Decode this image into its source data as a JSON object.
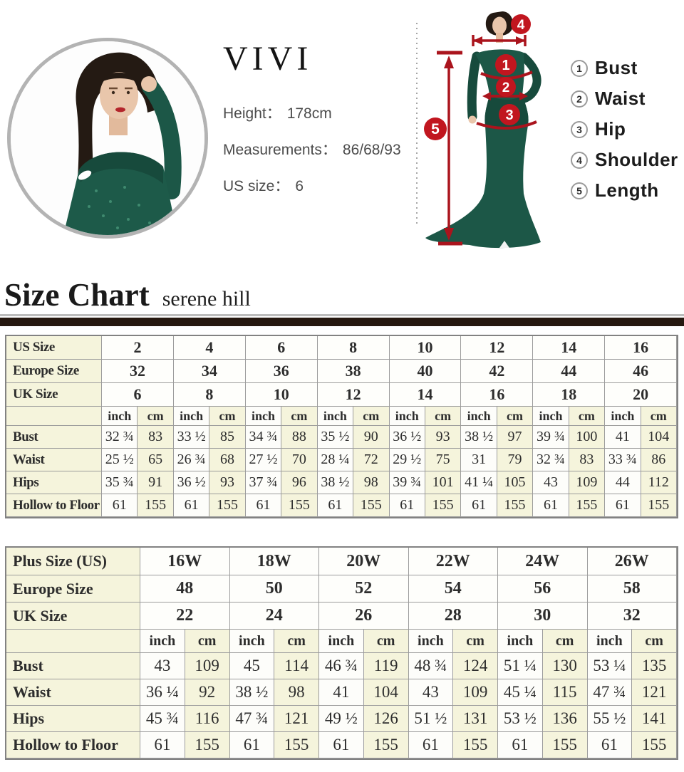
{
  "model_card": {
    "brand": "VIVI",
    "specs": [
      {
        "label": "Height：",
        "value": "178cm"
      },
      {
        "label": "Measurements：",
        "value": "86/68/93"
      },
      {
        "label": "US size：",
        "value": "6"
      }
    ]
  },
  "diagram": {
    "markers": [
      "1",
      "2",
      "3",
      "4",
      "5"
    ],
    "legend": [
      {
        "num": "1",
        "label": "Bust"
      },
      {
        "num": "2",
        "label": "Waist"
      },
      {
        "num": "3",
        "label": "Hip"
      },
      {
        "num": "4",
        "label": "Shoulder"
      },
      {
        "num": "5",
        "label": "Length"
      }
    ],
    "accent_red": "#c1161f",
    "dress_green": "#1c5747"
  },
  "size_chart": {
    "title": "Size Chart",
    "subtitle": "serene hill"
  },
  "tables": {
    "standard": {
      "units": [
        "inch",
        "cm"
      ],
      "header_rows": [
        {
          "label": "US Size",
          "values": [
            "2",
            "4",
            "6",
            "8",
            "10",
            "12",
            "14",
            "16"
          ]
        },
        {
          "label": "Europe Size",
          "values": [
            "32",
            "34",
            "36",
            "38",
            "40",
            "42",
            "44",
            "46"
          ]
        },
        {
          "label": "UK Size",
          "values": [
            "6",
            "8",
            "10",
            "12",
            "14",
            "16",
            "18",
            "20"
          ]
        }
      ],
      "body_rows": [
        {
          "label": "Bust",
          "values": [
            "32 ¾",
            "83",
            "33 ½",
            "85",
            "34 ¾",
            "88",
            "35 ½",
            "90",
            "36 ½",
            "93",
            "38 ½",
            "97",
            "39 ¾",
            "100",
            "41",
            "104"
          ]
        },
        {
          "label": "Waist",
          "values": [
            "25 ½",
            "65",
            "26 ¾",
            "68",
            "27 ½",
            "70",
            "28 ¼",
            "72",
            "29 ½",
            "75",
            "31",
            "79",
            "32 ¾",
            "83",
            "33 ¾",
            "86"
          ]
        },
        {
          "label": "Hips",
          "values": [
            "35 ¾",
            "91",
            "36 ½",
            "93",
            "37 ¾",
            "96",
            "38 ½",
            "98",
            "39 ¾",
            "101",
            "41 ¼",
            "105",
            "43",
            "109",
            "44",
            "112"
          ]
        },
        {
          "label": "Hollow to Floor",
          "values": [
            "61",
            "155",
            "61",
            "155",
            "61",
            "155",
            "61",
            "155",
            "61",
            "155",
            "61",
            "155",
            "61",
            "155",
            "61",
            "155"
          ]
        }
      ]
    },
    "plus": {
      "units": [
        "inch",
        "cm"
      ],
      "header_rows": [
        {
          "label": "Plus Size (US)",
          "values": [
            "16W",
            "18W",
            "20W",
            "22W",
            "24W",
            "26W"
          ]
        },
        {
          "label": "Europe Size",
          "values": [
            "48",
            "50",
            "52",
            "54",
            "56",
            "58"
          ]
        },
        {
          "label": "UK Size",
          "values": [
            "22",
            "24",
            "26",
            "28",
            "30",
            "32"
          ]
        }
      ],
      "body_rows": [
        {
          "label": "Bust",
          "values": [
            "43",
            "109",
            "45",
            "114",
            "46 ¾",
            "119",
            "48 ¾",
            "124",
            "51 ¼",
            "130",
            "53 ¼",
            "135"
          ]
        },
        {
          "label": "Waist",
          "values": [
            "36 ¼",
            "92",
            "38 ½",
            "98",
            "41",
            "104",
            "43",
            "109",
            "45 ¼",
            "115",
            "47 ¾",
            "121"
          ]
        },
        {
          "label": "Hips",
          "values": [
            "45 ¾",
            "116",
            "47 ¾",
            "121",
            "49 ½",
            "126",
            "51 ½",
            "131",
            "53 ½",
            "136",
            "55 ½",
            "141"
          ]
        },
        {
          "label": "Hollow to Floor",
          "values": [
            "61",
            "155",
            "61",
            "155",
            "61",
            "155",
            "61",
            "155",
            "61",
            "155",
            "61",
            "155"
          ]
        }
      ]
    }
  }
}
